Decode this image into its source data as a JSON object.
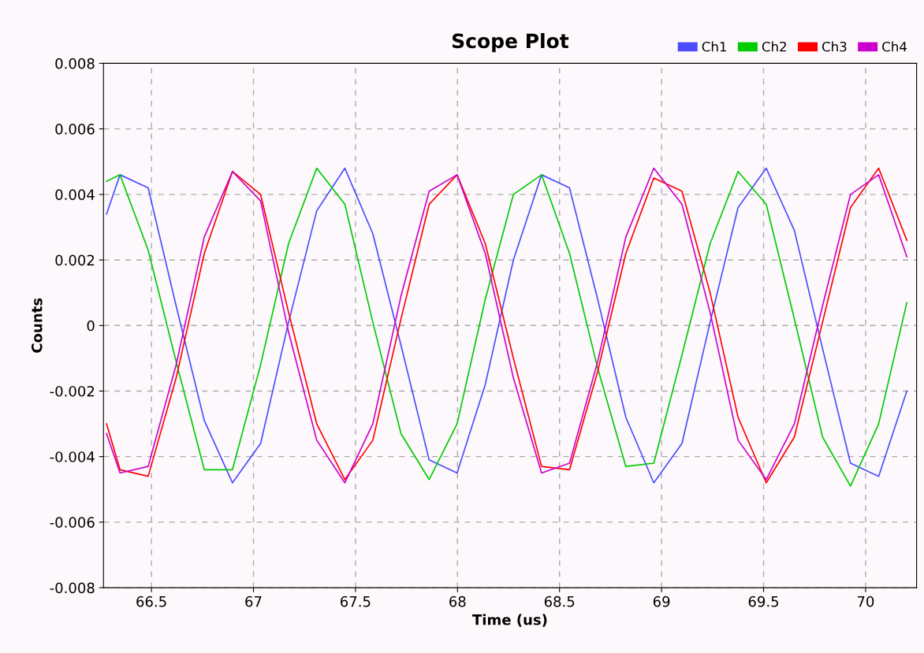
{
  "chart_data": {
    "type": "line",
    "title": "Scope Plot",
    "xlabel": "Time (us)",
    "ylabel": "Counts",
    "x": [
      66.28,
      66.346,
      66.484,
      66.621,
      66.759,
      66.897,
      67.035,
      67.172,
      67.31,
      67.448,
      67.585,
      67.723,
      67.861,
      67.998,
      68.136,
      68.274,
      68.412,
      68.549,
      68.687,
      68.825,
      68.962,
      69.1,
      69.238,
      69.375,
      69.513,
      69.651,
      69.789,
      69.926,
      70.064,
      70.202
    ],
    "series": [
      {
        "name": "Ch1",
        "color": "#4c4cff",
        "values": [
          0.0034,
          0.0046,
          0.0042,
          0.0006,
          -0.0029,
          -0.0048,
          -0.0036,
          0.0001,
          0.0035,
          0.0048,
          0.0028,
          -0.0006,
          -0.0041,
          -0.0045,
          -0.0018,
          0.002,
          0.0046,
          0.0042,
          0.0008,
          -0.0028,
          -0.0048,
          -0.0036,
          0.0001,
          0.0036,
          0.0048,
          0.0029,
          -0.0007,
          -0.0042,
          -0.0046,
          -0.002
        ]
      },
      {
        "name": "Ch2",
        "color": "#00cc00",
        "values": [
          0.0044,
          0.0046,
          0.0023,
          -0.0011,
          -0.0044,
          -0.0044,
          -0.0012,
          0.0025,
          0.0048,
          0.0037,
          0.0001,
          -0.0033,
          -0.0047,
          -0.003,
          0.0008,
          0.004,
          0.0046,
          0.0022,
          -0.0013,
          -0.0043,
          -0.0042,
          -0.0009,
          0.0025,
          0.0047,
          0.0037,
          0.0002,
          -0.0034,
          -0.0049,
          -0.003,
          0.0007
        ]
      },
      {
        "name": "Ch3",
        "color": "#ff0000",
        "values": [
          -0.003,
          -0.0044,
          -0.0046,
          -0.0016,
          0.0022,
          0.0047,
          0.004,
          0.0004,
          -0.003,
          -0.0047,
          -0.0035,
          0.0002,
          0.0037,
          0.0046,
          0.0025,
          -0.001,
          -0.0043,
          -0.0044,
          -0.0014,
          0.0022,
          0.0045,
          0.0041,
          0.001,
          -0.0028,
          -0.0048,
          -0.0034,
          0.0001,
          0.0036,
          0.0048,
          0.0026
        ]
      },
      {
        "name": "Ch4",
        "color": "#cc00cc",
        "values": [
          -0.0033,
          -0.0045,
          -0.0043,
          -0.0012,
          0.0027,
          0.0047,
          0.0038,
          -0.0002,
          -0.0035,
          -0.0048,
          -0.003,
          0.0009,
          0.0041,
          0.0046,
          0.0022,
          -0.0016,
          -0.0045,
          -0.0042,
          -0.0011,
          0.0027,
          0.0048,
          0.0037,
          0.0004,
          -0.0035,
          -0.0047,
          -0.003,
          0.0006,
          0.004,
          0.0046,
          0.0021
        ]
      }
    ],
    "xlim": [
      66.265,
      70.25
    ],
    "xticks": [
      66.5,
      67,
      67.5,
      68,
      68.5,
      69,
      69.5,
      70
    ],
    "ylim": [
      -0.008,
      0.008
    ],
    "yticks": [
      -0.008,
      -0.006,
      -0.004,
      -0.002,
      0,
      0.002,
      0.004,
      0.006,
      0.008
    ],
    "grid": true,
    "legend": "top right",
    "marker": "none",
    "line_style": "solid"
  }
}
